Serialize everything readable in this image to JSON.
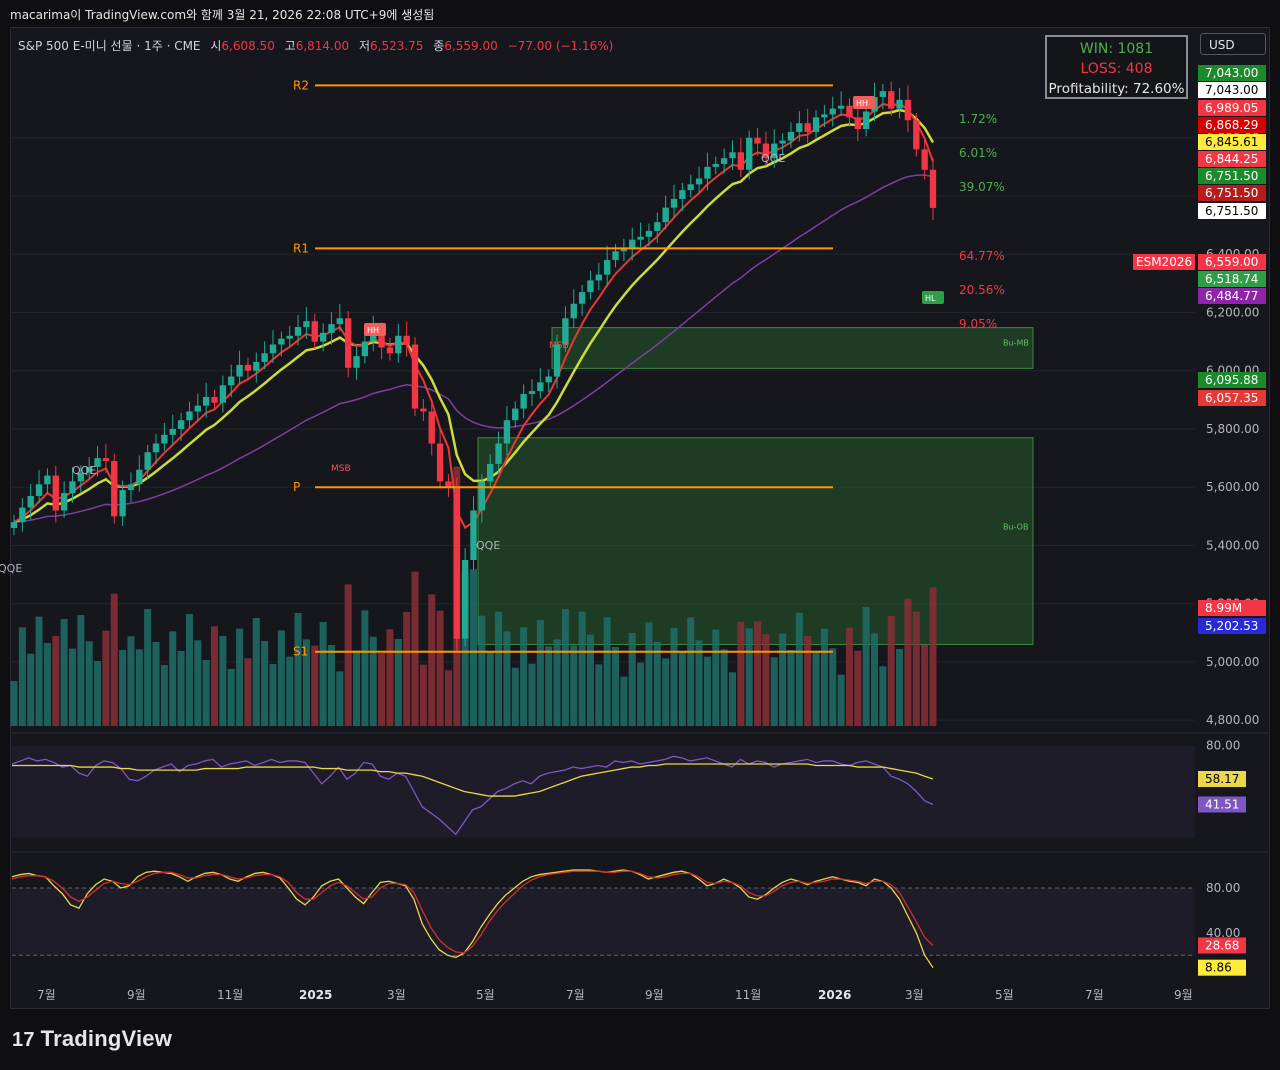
{
  "header": {
    "snapshot_line": "macarima이 TradingView.com와 함께 3월 21, 2026 22:08 UTC+9에 생성됨",
    "symbol": "S&P 500 E-미니 선물 · 1주 · CME",
    "open_label": "시",
    "open": "6,608.50",
    "high_label": "고",
    "high": "6,814.00",
    "low_label": "저",
    "low": "6,523.75",
    "close_label": "종",
    "close": "6,559.00",
    "change": "−77.00 (−1.16%)"
  },
  "currency": "USD",
  "stats": {
    "win": "WIN: 1081",
    "loss": "LOSS: 408",
    "profitability": "Profitability: 72.60%"
  },
  "brand": "TradingView",
  "colors": {
    "up": "#22ab94",
    "down": "#f23645",
    "ema_fast": "#e53935",
    "ema_mid": "#cddc39",
    "ema_slow": "#7e3fa0",
    "sr_line": "#ff9800"
  },
  "chart_data": [
    {
      "type": "candlestick",
      "timeframe": "1W",
      "x_tick_labels": [
        "7월",
        "9월",
        "11월",
        "2025",
        "3월",
        "5월",
        "7월",
        "9월",
        "11월",
        "2026",
        "3월",
        "5월",
        "7월",
        "9월"
      ],
      "y_tick_labels": [
        "4,800.00",
        "5,000.00",
        "5,200.00",
        "5,400.00",
        "5,600.00",
        "5,800.00",
        "6,000.00",
        "6,200.00",
        "6,400.00",
        "6,600.00",
        "6,800.00"
      ],
      "ylim": [
        4780,
        7170
      ],
      "weekly_close": [
        5480,
        5530,
        5570,
        5610,
        5640,
        5520,
        5580,
        5620,
        5650,
        5670,
        5700,
        5690,
        5500,
        5590,
        5610,
        5660,
        5720,
        5750,
        5780,
        5800,
        5830,
        5860,
        5880,
        5910,
        5890,
        5950,
        5980,
        6020,
        6000,
        6030,
        6060,
        6090,
        6110,
        6120,
        6150,
        6170,
        6100,
        6130,
        6160,
        6180,
        6010,
        6050,
        6100,
        6140,
        6080,
        6060,
        6120,
        6090,
        5870,
        5860,
        5750,
        5620,
        5600,
        5080,
        5350,
        5520,
        5620,
        5680,
        5750,
        5830,
        5870,
        5920,
        5930,
        5960,
        5980,
        6090,
        6180,
        6230,
        6270,
        6310,
        6330,
        6380,
        6410,
        6420,
        6450,
        6460,
        6480,
        6510,
        6560,
        6590,
        6620,
        6640,
        6660,
        6700,
        6710,
        6730,
        6750,
        6690,
        6800,
        6780,
        6730,
        6780,
        6790,
        6820,
        6850,
        6820,
        6870,
        6880,
        6900,
        6910,
        6870,
        6830,
        6890,
        6940,
        6960,
        6900,
        6930,
        6860,
        6760,
        6690,
        6559
      ],
      "annotations": {
        "pivot_levels": [
          {
            "label": "R2",
            "value": 6980
          },
          {
            "label": "R1",
            "value": 6420
          },
          {
            "label": "P",
            "value": 5600
          },
          {
            "label": "S1",
            "value": 5035
          }
        ],
        "signals": [
          "QQE",
          "QQE",
          "QQE",
          "QQE",
          "MSB",
          "MSB",
          "HH",
          "HH",
          "HL"
        ],
        "zones": [
          {
            "label": "Bu-MB",
            "from": 6008,
            "to": 6148
          },
          {
            "label": "Bu-OB",
            "from": 5060,
            "to": 5770
          }
        ],
        "fib_percent_labels": [
          "1.72%",
          "6.01%",
          "39.07%",
          "64.77%",
          "20.56%",
          "9.05%"
        ],
        "price_labels": [
          {
            "text": "7,043.00",
            "color": "#1b8a2a"
          },
          {
            "text": "7,043.00",
            "color": "#ffffff"
          },
          {
            "text": "6,989.05",
            "color": "#f23645"
          },
          {
            "text": "6,868.29",
            "color": "#d50000"
          },
          {
            "text": "6,845.61",
            "color": "#ffeb3b"
          },
          {
            "text": "6,844.25",
            "color": "#f23645"
          },
          {
            "text": "6,751.50",
            "color": "#1b8a2a"
          },
          {
            "text": "6,751.50",
            "color": "#b71c1c"
          },
          {
            "text": "6,751.50",
            "color": "#ffffff"
          },
          {
            "text": "ESM2026",
            "color": "#f23645"
          },
          {
            "text": "6,559.00",
            "color": "#f23645"
          },
          {
            "text": "6,518.74",
            "color": "#2e9e47"
          },
          {
            "text": "6,484.77",
            "color": "#8e24aa"
          },
          {
            "text": "6,095.88",
            "color": "#1b8a2a"
          },
          {
            "text": "6,057.35",
            "color": "#e53935"
          },
          {
            "text": "8.99M",
            "color": "#f23645"
          },
          {
            "text": "5,202.53",
            "color": "#2929d6"
          }
        ]
      }
    },
    {
      "type": "line",
      "name": "rsi_panel",
      "y_tick_labels": [
        "80.00"
      ],
      "ylim": [
        15,
        85
      ],
      "series": [
        {
          "color": "#7e57c2",
          "last": "41.51",
          "values": [
            68,
            70,
            72,
            70,
            71,
            69,
            66,
            67,
            62,
            60,
            67,
            70,
            69,
            65,
            58,
            57,
            60,
            64,
            66,
            68,
            63,
            67,
            68,
            70,
            71,
            66,
            68,
            69,
            70,
            67,
            69,
            71,
            69,
            70,
            70,
            69,
            62,
            55,
            60,
            66,
            58,
            62,
            69,
            68,
            60,
            58,
            62,
            60,
            50,
            40,
            36,
            32,
            27,
            22,
            30,
            38,
            40,
            45,
            50,
            52,
            55,
            57,
            55,
            60,
            62,
            63,
            64,
            66,
            65,
            66,
            67,
            66,
            70,
            69,
            70,
            68,
            69,
            70,
            71,
            73,
            72,
            70,
            71,
            72,
            70,
            68,
            66,
            71,
            68,
            70,
            69,
            66,
            68,
            69,
            70,
            71,
            69,
            70,
            70,
            68,
            67,
            69,
            70,
            68,
            66,
            60,
            58,
            55,
            50,
            44,
            41.51
          ]
        },
        {
          "color": "#e8d84a",
          "last": "58.17",
          "values": [
            67,
            67,
            67,
            67,
            67,
            67,
            67,
            67,
            66,
            66,
            66,
            66,
            66,
            65,
            65,
            64,
            64,
            64,
            64,
            64,
            64,
            64,
            64,
            65,
            65,
            65,
            65,
            65,
            66,
            66,
            66,
            66,
            66,
            66,
            66,
            66,
            66,
            65,
            65,
            65,
            64,
            64,
            64,
            64,
            63,
            63,
            62,
            62,
            61,
            60,
            58,
            56,
            54,
            52,
            50,
            49,
            48,
            47,
            47,
            47,
            47,
            48,
            49,
            50,
            52,
            54,
            56,
            58,
            60,
            61,
            62,
            63,
            64,
            65,
            66,
            66,
            67,
            67,
            68,
            68,
            68,
            68,
            68,
            68,
            68,
            68,
            68,
            68,
            68,
            68,
            68,
            68,
            68,
            68,
            68,
            68,
            67,
            67,
            67,
            67,
            67,
            66,
            66,
            66,
            66,
            65,
            64,
            63,
            62,
            60,
            58.17
          ]
        }
      ]
    },
    {
      "type": "line",
      "name": "stoch_panel",
      "y_tick_labels": [
        "80.00",
        "40.00"
      ],
      "ylim": [
        5,
        105
      ],
      "series": [
        {
          "color": "#e8d84a",
          "last": "8.86",
          "values": [
            90,
            92,
            93,
            91,
            90,
            82,
            75,
            65,
            62,
            75,
            83,
            88,
            86,
            80,
            82,
            90,
            94,
            95,
            94,
            93,
            90,
            86,
            90,
            93,
            94,
            92,
            88,
            86,
            90,
            93,
            94,
            92,
            89,
            80,
            70,
            65,
            72,
            82,
            86,
            88,
            80,
            72,
            66,
            76,
            85,
            86,
            84,
            82,
            70,
            48,
            35,
            25,
            20,
            18,
            22,
            32,
            45,
            56,
            66,
            74,
            80,
            86,
            90,
            92,
            93,
            94,
            95,
            96,
            96,
            96,
            95,
            94,
            95,
            96,
            95,
            92,
            88,
            90,
            92,
            94,
            95,
            93,
            88,
            82,
            84,
            88,
            85,
            80,
            72,
            70,
            74,
            80,
            85,
            88,
            86,
            83,
            86,
            88,
            90,
            88,
            86,
            85,
            82,
            88,
            86,
            80,
            70,
            55,
            40,
            20,
            8.86
          ]
        },
        {
          "color": "#d32f2f",
          "last": "28.68",
          "values": [
            88,
            90,
            91,
            91,
            90,
            86,
            80,
            72,
            68,
            72,
            78,
            84,
            86,
            84,
            83,
            86,
            90,
            93,
            94,
            94,
            92,
            89,
            89,
            91,
            92,
            92,
            90,
            88,
            89,
            91,
            92,
            92,
            90,
            85,
            76,
            70,
            70,
            76,
            82,
            85,
            82,
            76,
            70,
            72,
            80,
            84,
            84,
            83,
            76,
            60,
            45,
            34,
            27,
            23,
            22,
            28,
            38,
            50,
            60,
            68,
            75,
            82,
            87,
            90,
            92,
            93,
            94,
            95,
            95,
            95,
            95,
            94,
            94,
            95,
            95,
            93,
            90,
            89,
            90,
            92,
            93,
            93,
            90,
            85,
            84,
            86,
            85,
            82,
            76,
            73,
            73,
            77,
            82,
            85,
            86,
            84,
            85,
            86,
            88,
            88,
            87,
            86,
            84,
            86,
            86,
            83,
            76,
            63,
            50,
            36,
            28.68
          ]
        }
      ]
    }
  ]
}
